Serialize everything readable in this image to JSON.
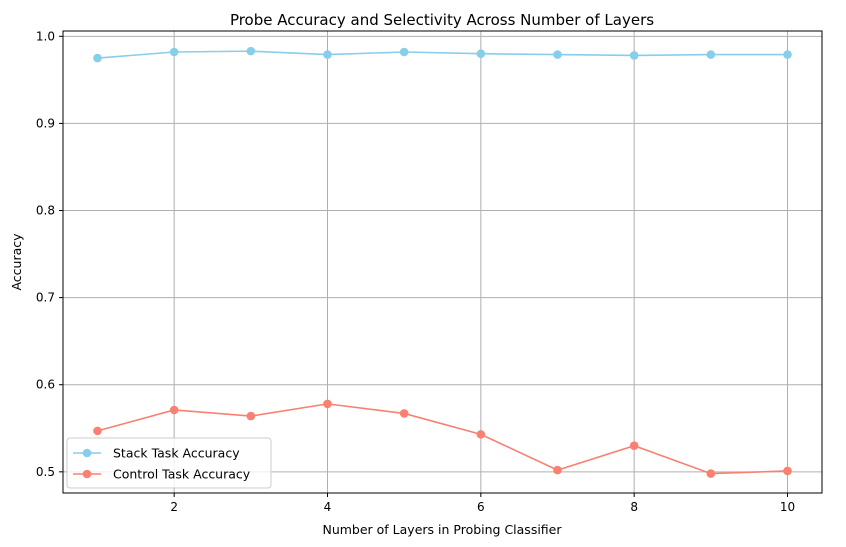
{
  "chart_data": {
    "type": "line",
    "title": "Probe Accuracy and Selectivity Across Number of Layers",
    "xlabel": "Number of Layers in Probing Classifier",
    "ylabel": "Accuracy",
    "x": [
      1,
      2,
      3,
      4,
      5,
      6,
      7,
      8,
      9,
      10
    ],
    "xticks": [
      "2",
      "4",
      "6",
      "8",
      "10"
    ],
    "yticks": [
      "0.5",
      "0.6",
      "0.7",
      "0.8",
      "0.9",
      "1.0"
    ],
    "xlim": [
      0.55,
      10.45
    ],
    "ylim": [
      0.4757,
      1.0061
    ],
    "grid": true,
    "legend_position": "lower-left",
    "series": [
      {
        "name": "Stack Task Accuracy",
        "color": "#87CEEB",
        "values": [
          0.975,
          0.982,
          0.983,
          0.979,
          0.982,
          0.98,
          0.979,
          0.978,
          0.979,
          0.979
        ]
      },
      {
        "name": "Control Task Accuracy",
        "color": "#FA8072",
        "values": [
          0.547,
          0.571,
          0.564,
          0.578,
          0.567,
          0.543,
          0.502,
          0.53,
          0.498,
          0.501
        ]
      }
    ]
  }
}
